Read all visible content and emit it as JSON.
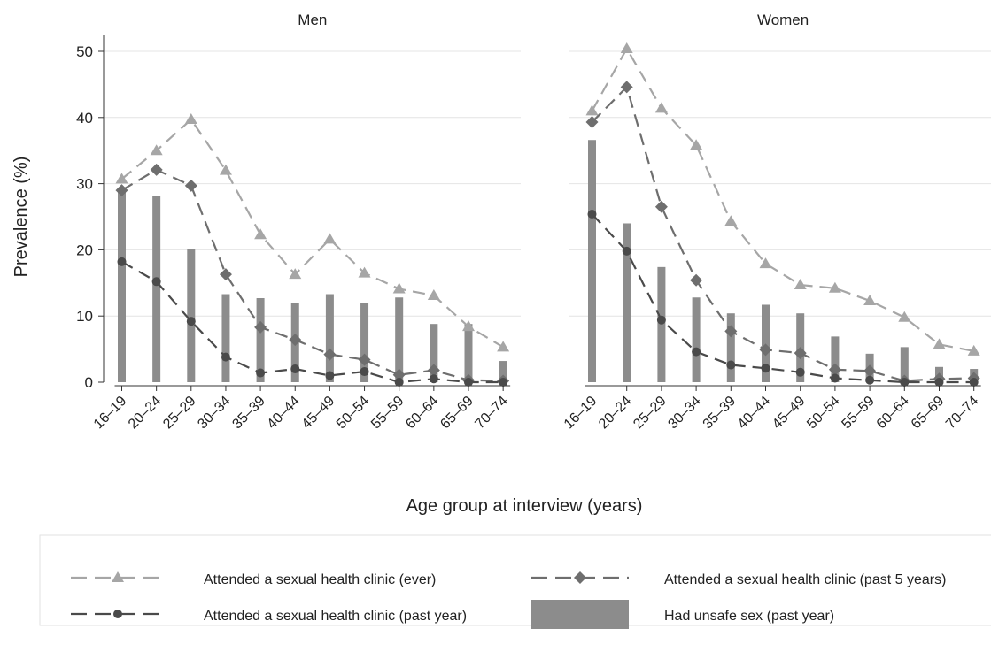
{
  "y_axis_label": "Prevalence (%)",
  "x_axis_label": "Age group at interview (years)",
  "y_ticks": [
    "0",
    "10",
    "20",
    "30",
    "40",
    "50"
  ],
  "colors": {
    "ever": "#a6a6a6",
    "past5": "#6e6e6e",
    "pastyear": "#4a4a4a",
    "bars": "#8c8c8c",
    "grid": "#e4e4e4"
  },
  "legend": {
    "ever": "Attended a sexual health clinic (ever)",
    "past5": "Attended a sexual health clinic (past 5 years)",
    "pastyear": "Attended a sexual health clinic (past year)",
    "unsafe": "Had unsafe sex (past year)"
  },
  "chart_data": [
    {
      "type": "line",
      "title": "Men",
      "xlabel": "Age group at interview (years)",
      "ylabel": "Prevalence (%)",
      "ylim": [
        0,
        50
      ],
      "grid": true,
      "categories": [
        "16–19",
        "20–24",
        "25–29",
        "30–34",
        "35–39",
        "40–44",
        "45–49",
        "50–54",
        "55–59",
        "60–64",
        "65–69",
        "70–74"
      ],
      "series": [
        {
          "name": "Attended a sexual health clinic (ever)",
          "kind": "line",
          "marker": "triangle",
          "values": [
            30.7,
            35.0,
            39.7,
            32.0,
            22.3,
            16.3,
            21.6,
            16.5,
            14.1,
            13.1,
            8.4,
            5.3
          ]
        },
        {
          "name": "Attended a sexual health clinic (past 5 years)",
          "kind": "line",
          "marker": "diamond",
          "values": [
            29.0,
            32.1,
            29.7,
            16.3,
            8.3,
            6.4,
            4.2,
            3.4,
            1.1,
            1.8,
            0.3,
            0.2
          ]
        },
        {
          "name": "Attended a sexual health clinic (past year)",
          "kind": "line",
          "marker": "circle",
          "values": [
            18.2,
            15.2,
            9.2,
            3.8,
            1.4,
            2.0,
            1.0,
            1.6,
            0.0,
            0.5,
            0.0,
            0.0
          ]
        },
        {
          "name": "Had unsafe sex (past year)",
          "kind": "bar",
          "values": [
            29.0,
            28.2,
            20.1,
            13.3,
            12.7,
            12.0,
            13.3,
            11.9,
            12.8,
            8.8,
            8.8,
            3.2
          ]
        }
      ]
    },
    {
      "type": "line",
      "title": "Women",
      "xlabel": "Age group at interview (years)",
      "ylabel": "Prevalence (%)",
      "ylim": [
        0,
        50
      ],
      "grid": true,
      "categories": [
        "16–19",
        "20–24",
        "25–29",
        "30–34",
        "35–39",
        "40–44",
        "45–49",
        "50–54",
        "55–59",
        "60–64",
        "65–69",
        "70–74"
      ],
      "series": [
        {
          "name": "Attended a sexual health clinic (ever)",
          "kind": "line",
          "marker": "triangle",
          "values": [
            41.0,
            50.4,
            41.4,
            35.8,
            24.3,
            17.9,
            14.7,
            14.2,
            12.3,
            9.8,
            5.7,
            4.7
          ]
        },
        {
          "name": "Attended a sexual health clinic (past 5 years)",
          "kind": "line",
          "marker": "diamond",
          "values": [
            39.3,
            44.6,
            26.5,
            15.4,
            7.7,
            4.9,
            4.4,
            1.9,
            1.7,
            0.2,
            0.5,
            0.6
          ]
        },
        {
          "name": "Attended a sexual health clinic (past year)",
          "kind": "line",
          "marker": "circle",
          "values": [
            25.4,
            19.8,
            9.4,
            4.6,
            2.6,
            2.1,
            1.5,
            0.6,
            0.3,
            0.0,
            0.0,
            0.0
          ]
        },
        {
          "name": "Had unsafe sex (past year)",
          "kind": "bar",
          "values": [
            36.6,
            24.0,
            17.4,
            12.8,
            10.4,
            11.7,
            10.4,
            6.9,
            4.3,
            5.3,
            2.3,
            2.0
          ]
        }
      ]
    }
  ]
}
